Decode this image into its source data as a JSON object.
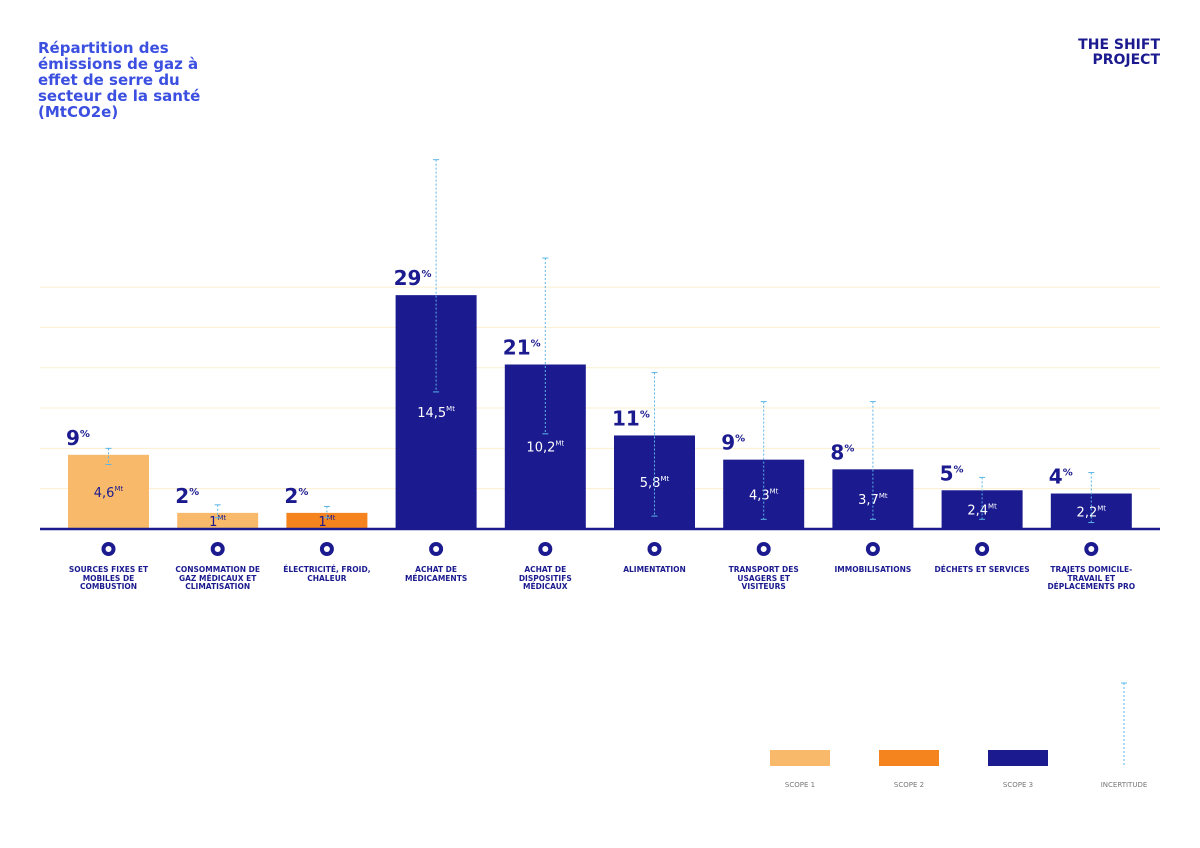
{
  "chart_data": {
    "type": "bar",
    "title": "Répartition des émissions de gaz à effet de serre du secteur de la santé (MtCO2e)",
    "logo": [
      "THE SHIFT",
      "PROJECT"
    ],
    "categories": [
      "SOURCES FIXES ET MOBILES DE COMBUSTION",
      "CONSOMMATION DE GAZ MÉDICAUX ET CLIMATISATION",
      "ÉLECTRICITÉ, FROID, CHALEUR",
      "ACHAT DE MÉDICAMENTS",
      "ACHAT DE DISPOSITIFS MÉDICAUX",
      "ALIMENTATION",
      "TRANSPORT DES USAGERS ET VISITEURS",
      "IMMOBILISATIONS",
      "DÉCHETS ET SERVICES",
      "TRAJETS DOMICILE-TRAVAIL ET DÉPLACEMENTS PRO"
    ],
    "values": [
      4.6,
      1,
      1,
      14.5,
      10.2,
      5.8,
      4.3,
      3.7,
      2.4,
      2.2
    ],
    "value_labels": [
      "4,6",
      "1",
      "1",
      "14,5",
      "10,2",
      "5,8",
      "4,3",
      "3,7",
      "2,4",
      "2,2"
    ],
    "value_unit": "Mt",
    "shares": [
      9,
      2,
      2,
      29,
      21,
      11,
      9,
      8,
      5,
      4
    ],
    "share_unit": "%",
    "scope": [
      0,
      0,
      1,
      2,
      2,
      2,
      2,
      2,
      2,
      2
    ],
    "error_low": [
      4.0,
      0.7,
      0.7,
      8.5,
      5.9,
      0.8,
      0.6,
      0.6,
      0.6,
      0.4
    ],
    "error_high": [
      5.0,
      1.5,
      1.4,
      22.9,
      16.8,
      9.7,
      7.9,
      7.9,
      3.2,
      3.5
    ],
    "scopes": [
      {
        "name": "SCOPE 1",
        "color": "#f9b96b"
      },
      {
        "name": "SCOPE 2",
        "color": "#f5841f"
      },
      {
        "name": "SCOPE 3",
        "color": "#1b1a8f"
      }
    ],
    "uncertainty_label": "INCERTITUDE",
    "uncertainty_color": "#5bb5e8",
    "ylim": [
      0,
      23.5
    ],
    "yticks": [
      2.5,
      5,
      7.5,
      10,
      12.5,
      15
    ],
    "show_tick_labels": false,
    "grid": true
  }
}
